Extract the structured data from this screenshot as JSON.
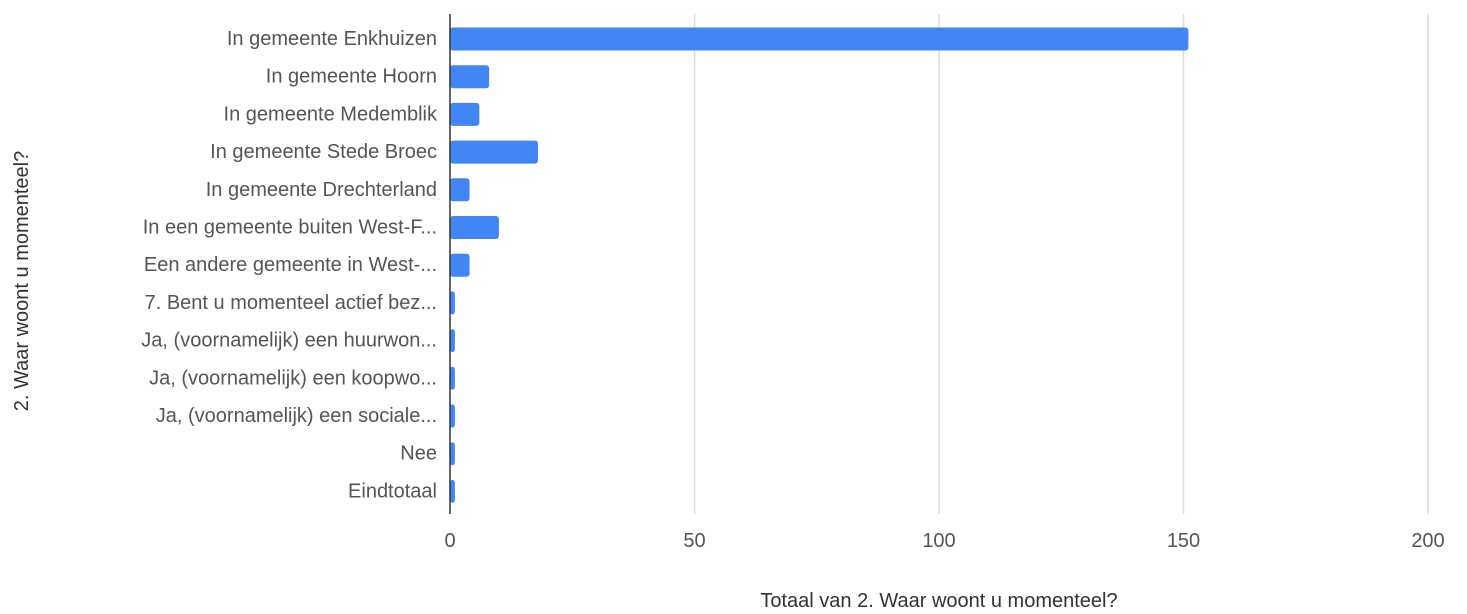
{
  "chart_data": {
    "type": "bar",
    "orientation": "horizontal",
    "categories": [
      "In gemeente Enkhuizen",
      "In gemeente Hoorn",
      "In gemeente Medemblik",
      "In gemeente Stede Broec",
      "In gemeente Drechterland",
      "In een gemeente buiten West-F...",
      "Een andere gemeente in West-...",
      "7. Bent u momenteel actief bez...",
      "Ja, (voornamelijk) een huurwon...",
      "Ja, (voornamelijk) een koopwo...",
      "Ja, (voornamelijk) een sociale...",
      "Nee",
      "Eindtotaal"
    ],
    "values": [
      151,
      8,
      6,
      18,
      4,
      10,
      4,
      1,
      1,
      1,
      1,
      1,
      1
    ],
    "xlabel": "Totaal van 2. Waar woont u momenteel?",
    "ylabel": "2. Waar woont u momenteel?",
    "xlim": [
      0,
      200
    ],
    "xticks": [
      0,
      50,
      100,
      150,
      200
    ],
    "xtick_labels": [
      "0",
      "50",
      "100",
      "150",
      "200"
    ],
    "grid": true,
    "legend": "none",
    "colors": {
      "bar": "#4285f4",
      "grid": "#dddddd",
      "axis": "#333333"
    }
  }
}
